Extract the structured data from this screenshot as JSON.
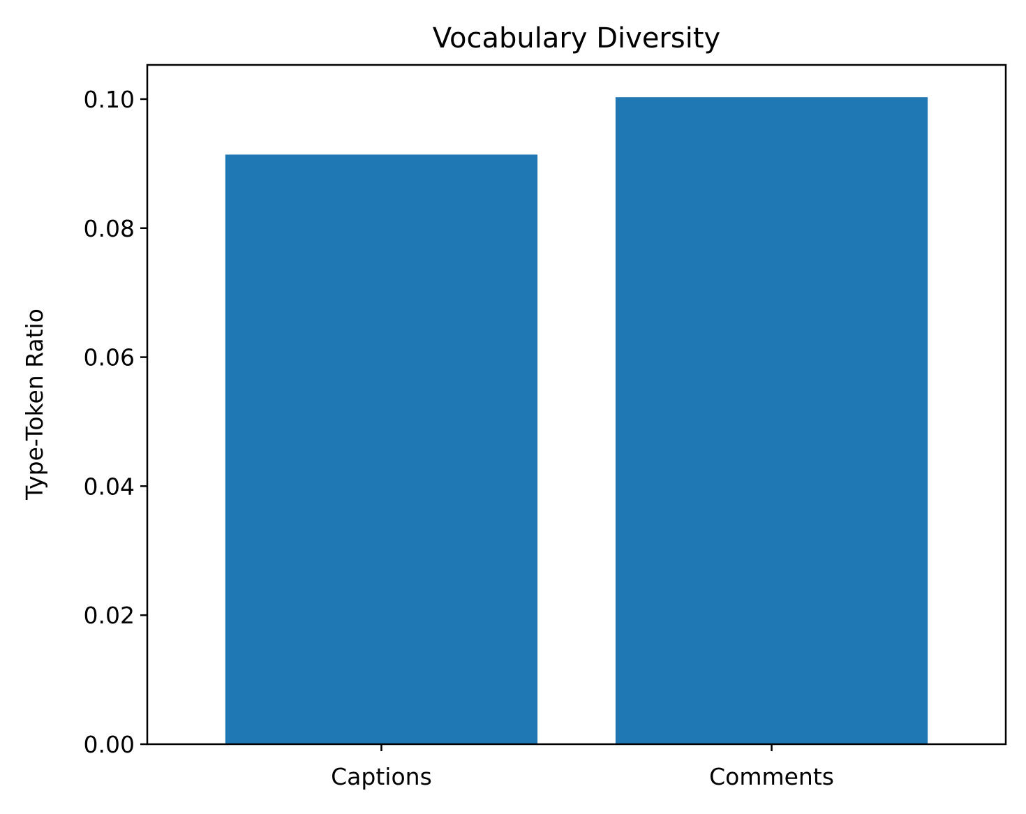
{
  "chart_data": {
    "type": "bar",
    "title": "Vocabulary Diversity",
    "xlabel": "",
    "ylabel": "Type-Token Ratio",
    "categories": [
      "Captions",
      "Comments"
    ],
    "values": [
      0.0914,
      0.1003
    ],
    "ylim": [
      0,
      0.1053
    ],
    "yticks": [
      "0.00",
      "0.02",
      "0.04",
      "0.06",
      "0.08",
      "0.10"
    ],
    "grid": false,
    "legend": "none",
    "bar_color": "#1f77b4"
  }
}
